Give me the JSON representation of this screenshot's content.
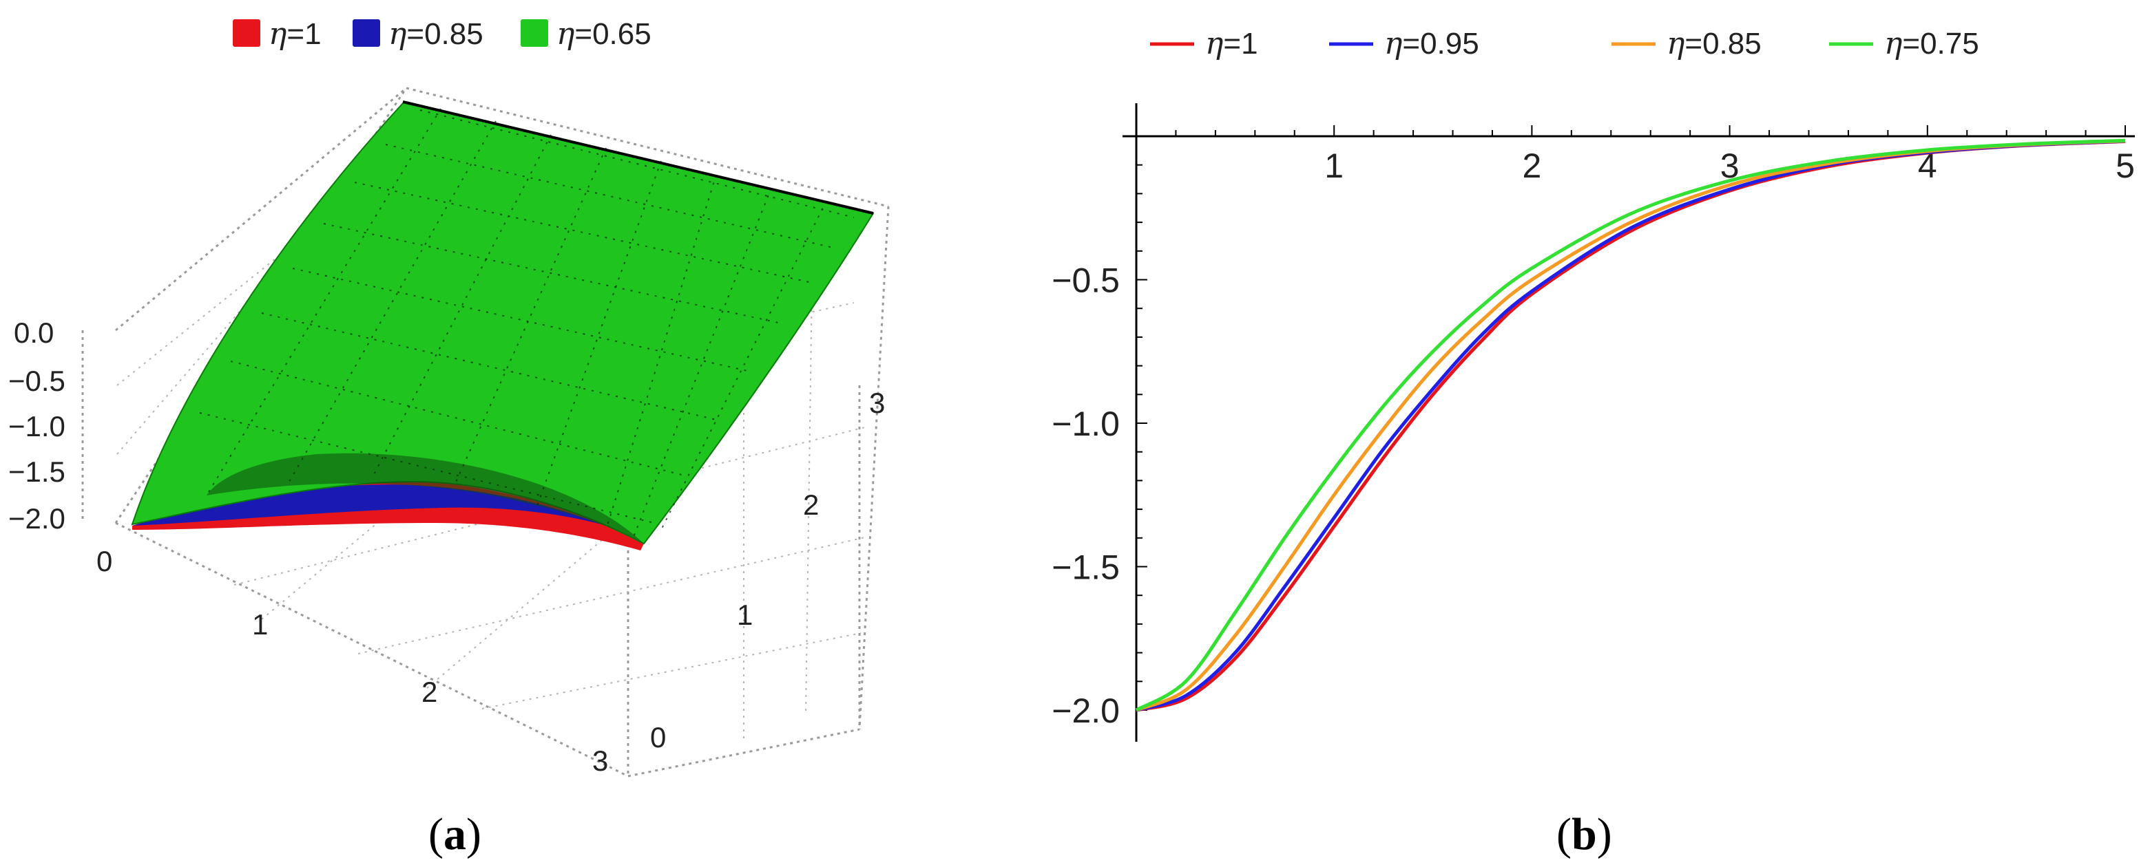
{
  "panel_labels": {
    "open": "(",
    "a": "a",
    "b": "b",
    "close": ")"
  },
  "chart_data": [
    {
      "panel": "a",
      "type": "surface3d",
      "legend": [
        {
          "symbol": "η",
          "value": "=1",
          "color": "#e8141b"
        },
        {
          "symbol": "η",
          "value": "=0.85",
          "color": "#1a1ab3"
        },
        {
          "symbol": "η",
          "value": "=0.65",
          "color": "#1ec81e"
        }
      ],
      "z_ticks": [
        "0.0",
        "−0.5",
        "−1.0",
        "−1.5",
        "−2.0"
      ],
      "x_ticks": [
        "0",
        "1",
        "2",
        "3"
      ],
      "y_ticks": [
        "0",
        "1",
        "2",
        "3"
      ],
      "zlim": [
        -2,
        0
      ],
      "xlim": [
        0,
        3
      ],
      "ylim": [
        0,
        3
      ]
    },
    {
      "panel": "b",
      "type": "line",
      "legend_position": "top",
      "xlim": [
        0,
        5
      ],
      "ylim": [
        -2.1,
        0.15
      ],
      "x_ticks": [
        {
          "value": 1,
          "label": "1"
        },
        {
          "value": 2,
          "label": "2"
        },
        {
          "value": 3,
          "label": "3"
        },
        {
          "value": 4,
          "label": "4"
        },
        {
          "value": 5,
          "label": "5"
        }
      ],
      "y_ticks": [
        {
          "value": -0.5,
          "label": "−0.5"
        },
        {
          "value": -1.0,
          "label": "−1.0"
        },
        {
          "value": -1.5,
          "label": "−1.5"
        },
        {
          "value": -2.0,
          "label": "−2.0"
        }
      ],
      "x": [
        0,
        0.25,
        0.5,
        0.75,
        1.0,
        1.25,
        1.5,
        1.75,
        2.0,
        2.5,
        3.0,
        3.5,
        4.0,
        4.5,
        5.0
      ],
      "series": [
        {
          "name": "η=1",
          "symbol": "η",
          "value": "=1",
          "color": "#e8141b",
          "values": [
            -2.0,
            -1.96,
            -1.82,
            -1.6,
            -1.36,
            -1.12,
            -0.9,
            -0.71,
            -0.55,
            -0.33,
            -0.19,
            -0.105,
            -0.058,
            -0.032,
            -0.018
          ]
        },
        {
          "name": "η=0.95",
          "symbol": "η",
          "value": "=0.95",
          "color": "#1f1fe8",
          "values": [
            -2.0,
            -1.95,
            -1.8,
            -1.57,
            -1.33,
            -1.09,
            -0.88,
            -0.69,
            -0.54,
            -0.32,
            -0.185,
            -0.1,
            -0.056,
            -0.031,
            -0.017
          ]
        },
        {
          "name": "η=0.85",
          "symbol": "η",
          "value": "=0.85",
          "color": "#f59a23",
          "values": [
            -2.0,
            -1.93,
            -1.74,
            -1.5,
            -1.25,
            -1.02,
            -0.81,
            -0.64,
            -0.5,
            -0.3,
            -0.17,
            -0.095,
            -0.052,
            -0.029,
            -0.016
          ]
        },
        {
          "name": "η=0.75",
          "symbol": "η",
          "value": "=0.75",
          "color": "#33e033",
          "values": [
            -2.0,
            -1.9,
            -1.66,
            -1.4,
            -1.16,
            -0.94,
            -0.75,
            -0.59,
            -0.46,
            -0.27,
            -0.155,
            -0.087,
            -0.048,
            -0.027,
            -0.015
          ]
        }
      ]
    }
  ]
}
